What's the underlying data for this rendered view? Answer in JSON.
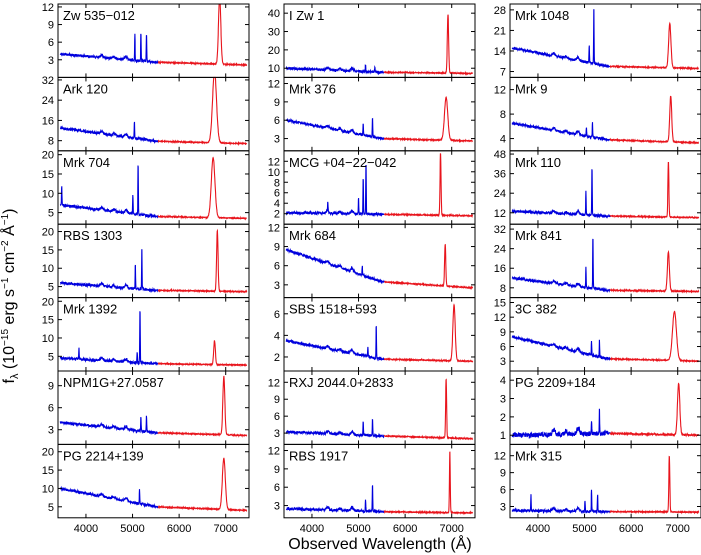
{
  "chart_data": {
    "type": "line",
    "title": "",
    "xlabel": "Observed Wavelength (Å)",
    "ylabel": {
      "f": "f",
      "lambda_sub": "λ",
      "open": " (10",
      "exp15": "−15",
      "erg": " erg s",
      "exp1a": "−1",
      "cm": " cm",
      "exp2": "−2",
      "ang": " Å",
      "exp1b": "−1",
      "close": ")"
    },
    "xlim": [
      3400,
      7500
    ],
    "xticks": [
      4000,
      5000,
      6000,
      7000
    ],
    "xtick_labels": [
      "4000",
      "5000",
      "6000",
      "7000"
    ],
    "blue_color": "#0000dd",
    "red_color": "#e8141c",
    "panels": [
      {
        "name": "Zw 535−012",
        "ylim": [
          0,
          12.5
        ],
        "yticks": [
          3,
          6,
          9,
          12
        ],
        "yticklabels": [
          "3",
          "6",
          "9",
          "12"
        ],
        "base": [
          4.0,
          2.6,
          2.1
        ],
        "peak": 11.5,
        "peak_x": 6870,
        "peak_w": 35,
        "narrow": [
          [
            5050,
            4.5
          ],
          [
            5180,
            5.0
          ],
          [
            5300,
            4.8
          ]
        ]
      },
      {
        "name": "Ark 120",
        "ylim": [
          4,
          33
        ],
        "yticks": [
          8,
          16,
          24,
          32
        ],
        "yticklabels": [
          "8",
          "16",
          "24",
          "32"
        ],
        "base": [
          13.0,
          7.8,
          6.8
        ],
        "peak": 28.0,
        "peak_x": 6760,
        "peak_w": 60,
        "narrow": [
          [
            5040,
            6.5
          ]
        ]
      },
      {
        "name": "Mrk 704",
        "ylim": [
          2,
          21
        ],
        "yticks": [
          5,
          10,
          15,
          20
        ],
        "yticklabels": [
          "5",
          "10",
          "15",
          "20"
        ],
        "base": [
          7.0,
          4.0,
          3.5
        ],
        "peak": 15.5,
        "peak_x": 6730,
        "peak_w": 55,
        "narrow": [
          [
            3480,
            5.0
          ],
          [
            5007,
            5.0
          ],
          [
            5120,
            13.5
          ]
        ]
      },
      {
        "name": "RBS 1303",
        "ylim": [
          2,
          22
        ],
        "yticks": [
          5,
          10,
          15,
          20
        ],
        "yticklabels": [
          "5",
          "10",
          "15",
          "20"
        ],
        "base": [
          6.0,
          4.0,
          3.6
        ],
        "peak": 16.5,
        "peak_x": 6820,
        "peak_w": 22,
        "narrow": [
          [
            5060,
            7.0
          ],
          [
            5200,
            11.5
          ]
        ]
      },
      {
        "name": "Mrk 1392",
        "ylim": [
          1,
          21
        ],
        "yticks": [
          5,
          10,
          15,
          20
        ],
        "yticklabels": [
          "5",
          "10",
          "15",
          "20"
        ],
        "base": [
          4.5,
          3.0,
          2.6
        ],
        "peak": 6.5,
        "peak_x": 6760,
        "peak_w": 25,
        "narrow": [
          [
            3850,
            3.0
          ],
          [
            5100,
            3.0
          ],
          [
            5160,
            15.0
          ]
        ]
      },
      {
        "name": "NPM1G+27.0587",
        "ylim": [
          1,
          11
        ],
        "yticks": [
          3,
          6,
          9
        ],
        "yticklabels": [
          "3",
          "6",
          "9"
        ],
        "base": [
          4.0,
          2.6,
          2.2
        ],
        "peak": 8.0,
        "peak_x": 6960,
        "peak_w": 30,
        "narrow": [
          [
            5180,
            2.0
          ],
          [
            5300,
            2.2
          ]
        ]
      },
      {
        "name": "PG 2214+139",
        "ylim": [
          2,
          22
        ],
        "yticks": [
          5,
          10,
          15,
          20
        ],
        "yticklabels": [
          "5",
          "10",
          "15",
          "20"
        ],
        "base": [
          10.0,
          5.0,
          4.0
        ],
        "peak": 14.0,
        "peak_x": 6960,
        "peak_w": 45,
        "narrow": [
          [
            5150,
            4.0
          ]
        ]
      },
      {
        "name": "I Zw 1",
        "ylim": [
          5,
          45
        ],
        "yticks": [
          10,
          20,
          30,
          40
        ],
        "yticklabels": [
          "10",
          "20",
          "30",
          "40"
        ],
        "base": [
          10.0,
          7.8,
          7.2
        ],
        "peak": 32.0,
        "peak_x": 6920,
        "peak_w": 20,
        "narrow": [
          [
            5150,
            4.0
          ],
          [
            5350,
            3.0
          ]
        ]
      },
      {
        "name": "Mrk 376",
        "ylim": [
          1,
          13
        ],
        "yticks": [
          3,
          6,
          9,
          12
        ],
        "yticklabels": [
          "3",
          "6",
          "9",
          "12"
        ],
        "base": [
          6.0,
          3.0,
          2.6
        ],
        "peak": 7.0,
        "peak_x": 6880,
        "peak_w": 50,
        "narrow": [
          [
            5100,
            2.0
          ],
          [
            5300,
            3.0
          ]
        ]
      },
      {
        "name": "MCG +04−22−042",
        "ylim": [
          0,
          14
        ],
        "yticks": [
          2,
          4,
          6,
          8,
          10,
          12
        ],
        "yticklabels": [
          "2",
          "4",
          "6",
          "8",
          "10",
          "12"
        ],
        "base": [
          2.2,
          1.9,
          1.6
        ],
        "peak": 12.0,
        "peak_x": 6760,
        "peak_w": 15,
        "narrow": [
          [
            4340,
            1.8
          ],
          [
            5000,
            3.0
          ],
          [
            5100,
            7.0
          ],
          [
            5160,
            10.0
          ]
        ]
      },
      {
        "name": "Mrk 684",
        "ylim": [
          1,
          12.5
        ],
        "yticks": [
          3,
          6,
          9,
          12
        ],
        "yticklabels": [
          "3",
          "6",
          "9",
          "12"
        ],
        "base": [
          8.5,
          3.5,
          2.5
        ],
        "peak": 6.5,
        "peak_x": 6860,
        "peak_w": 18,
        "narrow": [
          [
            5080,
            1.5
          ]
        ]
      },
      {
        "name": "SBS 1518+593",
        "ylim": [
          0.7,
          7.5
        ],
        "yticks": [
          2,
          4,
          6
        ],
        "yticklabels": [
          "2",
          "4",
          "6"
        ],
        "base": [
          3.5,
          1.8,
          1.6
        ],
        "peak": 5.2,
        "peak_x": 7050,
        "peak_w": 35,
        "narrow": [
          [
            5200,
            1.0
          ],
          [
            5380,
            3.2
          ]
        ]
      },
      {
        "name": "RXJ 2044.0+2833",
        "ylim": [
          1,
          14
        ],
        "yticks": [
          3,
          6,
          9,
          12
        ],
        "yticklabels": [
          "3",
          "6",
          "9",
          "12"
        ],
        "base": [
          3.2,
          2.5,
          2.0
        ],
        "peak": 10.5,
        "peak_x": 6880,
        "peak_w": 15,
        "narrow": [
          [
            5100,
            2.5
          ],
          [
            5300,
            2.8
          ]
        ]
      },
      {
        "name": "RBS 1917",
        "ylim": [
          1,
          13
        ],
        "yticks": [
          3,
          6,
          9,
          12
        ],
        "yticklabels": [
          "3",
          "6",
          "9",
          "12"
        ],
        "base": [
          2.5,
          2.0,
          1.8
        ],
        "peak": 10.2,
        "peak_x": 6960,
        "peak_w": 12,
        "narrow": [
          [
            5150,
            2.0
          ],
          [
            5300,
            4.5
          ]
        ]
      },
      {
        "name": "Mrk 1048",
        "ylim": [
          5,
          30
        ],
        "yticks": [
          7,
          14,
          21,
          28
        ],
        "yticklabels": [
          "7",
          "14",
          "21",
          "28"
        ],
        "base": [
          15.0,
          8.8,
          8.0
        ],
        "peak": 15.0,
        "peak_x": 6830,
        "peak_w": 35,
        "narrow": [
          [
            5100,
            6.0
          ],
          [
            5200,
            20.0
          ]
        ]
      },
      {
        "name": "Mrk 9",
        "ylim": [
          2,
          14
        ],
        "yticks": [
          4,
          8,
          12
        ],
        "yticklabels": [
          "4",
          "8",
          "12"
        ],
        "base": [
          6.5,
          3.8,
          3.3
        ],
        "peak": 7.5,
        "peak_x": 6850,
        "peak_w": 30,
        "narrow": [
          [
            5040,
            1.5
          ],
          [
            5170,
            2.5
          ]
        ]
      },
      {
        "name": "Mrk 110",
        "ylim": [
          5,
          50
        ],
        "yticks": [
          12,
          24,
          36,
          48
        ],
        "yticklabels": [
          "12",
          "24",
          "36",
          "48"
        ],
        "base": [
          13.0,
          10.0,
          9.0
        ],
        "peak": 34.0,
        "peak_x": 6800,
        "peak_w": 15,
        "narrow": [
          [
            5030,
            15.0
          ],
          [
            5160,
            30.0
          ]
        ]
      },
      {
        "name": "Mrk 841",
        "ylim": [
          4,
          34
        ],
        "yticks": [
          8,
          16,
          24,
          32
        ],
        "yticklabels": [
          "8",
          "16",
          "24",
          "32"
        ],
        "base": [
          12.0,
          7.0,
          6.5
        ],
        "peak": 16.0,
        "peak_x": 6800,
        "peak_w": 30,
        "narrow": [
          [
            5030,
            8.0
          ],
          [
            5180,
            22.0
          ]
        ]
      },
      {
        "name": "3C 382",
        "ylim": [
          1,
          16
        ],
        "yticks": [
          3,
          6,
          9,
          12,
          15
        ],
        "yticklabels": [
          "3",
          "6",
          "9",
          "12",
          "15"
        ],
        "base": [
          8.0,
          3.5,
          3.0
        ],
        "peak": 10.0,
        "peak_x": 6930,
        "peak_w": 60,
        "narrow": [
          [
            5150,
            3.0
          ],
          [
            5320,
            3.5
          ]
        ]
      },
      {
        "name": "PG 2209+184",
        "ylim": [
          0.5,
          4.5
        ],
        "yticks": [
          1,
          2,
          3,
          4
        ],
        "yticklabels": [
          "1",
          "2",
          "3",
          "4"
        ],
        "base": [
          1.0,
          1.1,
          1.0
        ],
        "peak": 2.8,
        "peak_x": 7020,
        "peak_w": 35,
        "narrow": [
          [
            5150,
            0.8
          ],
          [
            5320,
            1.4
          ]
        ]
      },
      {
        "name": "Mrk 315",
        "ylim": [
          1,
          14
        ],
        "yticks": [
          3,
          6,
          9,
          12
        ],
        "yticklabels": [
          "3",
          "6",
          "9",
          "12"
        ],
        "base": [
          2.3,
          2.1,
          2.0
        ],
        "peak": 10.0,
        "peak_x": 6820,
        "peak_w": 15,
        "narrow": [
          [
            3850,
            3.0
          ],
          [
            5010,
            2.0
          ],
          [
            5150,
            4.0
          ],
          [
            5280,
            3.0
          ]
        ]
      }
    ]
  }
}
